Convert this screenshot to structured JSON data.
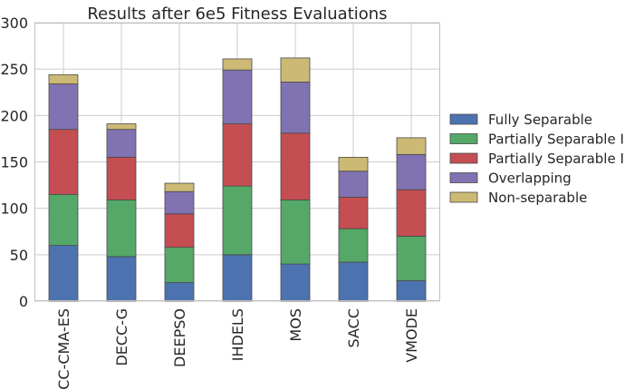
{
  "chart_data": {
    "type": "bar",
    "stacked": true,
    "title": "Results after 6e5 Fitness Evaluations",
    "xlabel": "",
    "ylabel": "",
    "ylim": [
      0,
      300
    ],
    "yticks": [
      "0",
      "50",
      "100",
      "150",
      "200",
      "250",
      "300"
    ],
    "grid": true,
    "legend_position": "right",
    "categories": [
      "CC-CMA-ES",
      "DECC-G",
      "DEEPSO",
      "IHDELS",
      "MOS",
      "SACC",
      "VMODE"
    ],
    "series": [
      {
        "name": "Fully Separable",
        "color": "#4c72b0",
        "values": [
          60,
          48,
          20,
          50,
          40,
          42,
          22
        ]
      },
      {
        "name": "Partially Separable I",
        "color": "#55a868",
        "values": [
          55,
          61,
          38,
          74,
          69,
          36,
          48
        ]
      },
      {
        "name": "Partially Separable II",
        "color": "#c44e52",
        "values": [
          70,
          46,
          36,
          67,
          72,
          34,
          50
        ]
      },
      {
        "name": "Overlapping",
        "color": "#8172b2",
        "values": [
          49,
          30,
          24,
          58,
          55,
          28,
          38
        ]
      },
      {
        "name": "Non-separable",
        "color": "#ccb974",
        "values": [
          10,
          6,
          9,
          12,
          26,
          15,
          18
        ]
      }
    ]
  }
}
